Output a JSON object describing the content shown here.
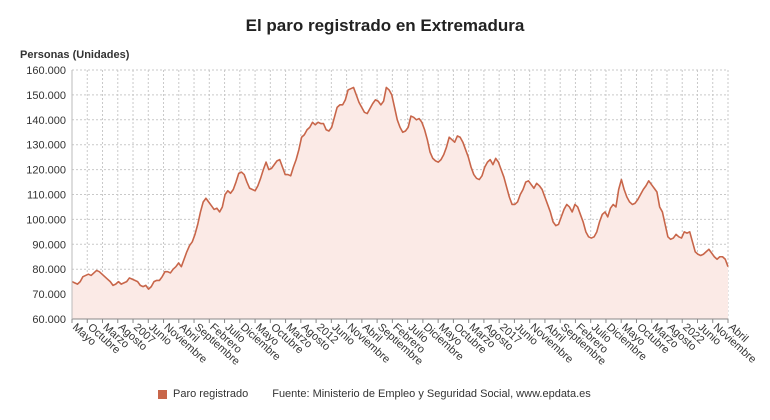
{
  "chart_data": {
    "type": "area",
    "title": "El paro registrado en Extremadura",
    "ylabel": "Personas (Unidades)",
    "ylim": [
      60000,
      160000
    ],
    "y_ticks": [
      60000,
      70000,
      80000,
      90000,
      100000,
      110000,
      120000,
      130000,
      140000,
      150000,
      160000
    ],
    "y_tick_labels": [
      "60.000",
      "70.000",
      "80.000",
      "90.000",
      "100.000",
      "110.000",
      "120.000",
      "130.000",
      "140.000",
      "150.000",
      "160.000"
    ],
    "x_tick_labels": [
      "Mayo",
      "Octubre",
      "Marzo",
      "Agosto",
      "2007",
      "Junio",
      "Noviembre",
      "Abril",
      "Septiembre",
      "Febrero",
      "Julio",
      "Diciembre",
      "Mayo",
      "Octubre",
      "Marzo",
      "Agosto",
      "2012",
      "Junio",
      "Noviembre",
      "Abril",
      "Septiembre",
      "Febrero",
      "Julio",
      "Diciembre",
      "Mayo",
      "Octubre",
      "Marzo",
      "Agosto",
      "2017",
      "Junio",
      "Noviembre",
      "Abril",
      "Septiembre",
      "Febrero",
      "Julio",
      "Diciembre",
      "Mayo",
      "Octubre",
      "Marzo",
      "Agosto",
      "2022",
      "Junio",
      "Noviembre",
      "Abril"
    ],
    "grid": true,
    "legend": "bottom",
    "line_color": "#c8664a",
    "fill_color": "#fbeae6",
    "series": [
      {
        "name": "Paro registrado",
        "values": [
          75000,
          74500,
          74000,
          75000,
          77000,
          77500,
          78000,
          77500,
          78500,
          79500,
          79000,
          78000,
          77000,
          76000,
          75000,
          73500,
          74000,
          75000,
          74000,
          74500,
          75000,
          76500,
          76000,
          75500,
          75000,
          73500,
          73000,
          73500,
          72000,
          73000,
          75000,
          75500,
          75500,
          77000,
          79000,
          79000,
          78500,
          80000,
          81000,
          82500,
          81000,
          84000,
          87000,
          89500,
          91000,
          94000,
          98000,
          103000,
          107000,
          108500,
          107000,
          105500,
          104000,
          104500,
          103000,
          105000,
          110000,
          111500,
          110500,
          112000,
          115000,
          118500,
          119000,
          118000,
          115000,
          112500,
          112000,
          111500,
          113500,
          116500,
          120000,
          123000,
          120000,
          120500,
          122000,
          123500,
          124000,
          121000,
          118000,
          118000,
          117500,
          121000,
          124000,
          128000,
          133000,
          134000,
          136000,
          137000,
          139000,
          138000,
          139000,
          138500,
          138500,
          136000,
          135500,
          137000,
          141000,
          145000,
          146000,
          146000,
          148000,
          152000,
          152500,
          153000,
          150000,
          147000,
          145000,
          143000,
          142500,
          144500,
          146500,
          148000,
          147500,
          146000,
          147500,
          153000,
          152000,
          150000,
          145000,
          140000,
          137000,
          135000,
          135500,
          137000,
          141500,
          141000,
          140000,
          140500,
          139000,
          136000,
          132000,
          127000,
          124500,
          123500,
          123000,
          124000,
          126000,
          129000,
          133000,
          132000,
          131000,
          133500,
          133000,
          131000,
          128000,
          125000,
          121000,
          118000,
          116500,
          116000,
          117500,
          121000,
          123000,
          124000,
          122000,
          124500,
          123000,
          120000,
          117000,
          113000,
          109000,
          106000,
          106000,
          107000,
          110000,
          112000,
          115000,
          115500,
          114000,
          112500,
          114500,
          113500,
          112000,
          109000,
          106000,
          103000,
          99000,
          97500,
          98000,
          101000,
          104000,
          106000,
          105000,
          103000,
          106000,
          105000,
          102000,
          99000,
          95000,
          93000,
          92500,
          93000,
          95000,
          99000,
          102000,
          103000,
          101000,
          104500,
          106000,
          105000,
          112000,
          116000,
          112000,
          109000,
          107000,
          106000,
          106500,
          108000,
          110000,
          112000,
          113500,
          115500,
          114000,
          112500,
          111000,
          105000,
          103000,
          98000,
          93000,
          92000,
          92500,
          94000,
          93000,
          92500,
          95000,
          94500,
          95000,
          91000,
          87000,
          86000,
          85500,
          86000,
          87000,
          88000,
          86500,
          85000,
          84000,
          85000,
          85000,
          84000,
          81000
        ]
      }
    ]
  },
  "legend_label": "Paro registrado",
  "source": "Fuente: Ministerio de Empleo y Seguridad Social, www.epdata.es"
}
